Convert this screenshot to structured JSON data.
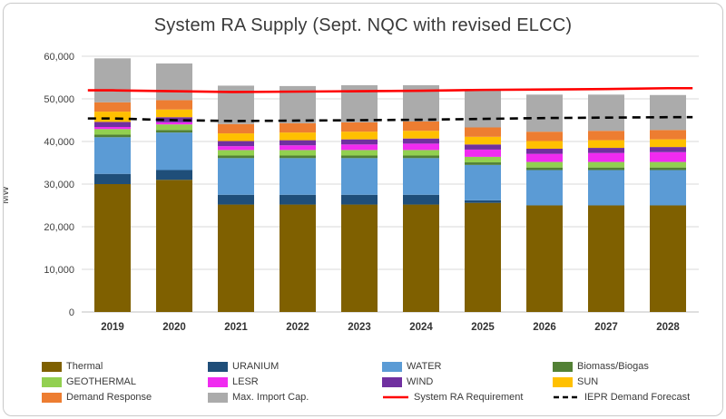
{
  "chart_data": {
    "type": "bar",
    "stacked": true,
    "title": "System RA Supply (Sept. NQC with revised ELCC)",
    "xlabel": "",
    "ylabel": "MW",
    "ylim": [
      0,
      60000
    ],
    "ytick_step": 10000,
    "grid": "horizontal",
    "legend_position": "bottom",
    "categories": [
      "2019",
      "2020",
      "2021",
      "2022",
      "2023",
      "2024",
      "2025",
      "2026",
      "2027",
      "2028"
    ],
    "series": [
      {
        "name": "Thermal",
        "color": "#7F6000",
        "values": [
          30000,
          31000,
          25200,
          25200,
          25200,
          25200,
          25600,
          25000,
          25000,
          25000
        ]
      },
      {
        "name": "URANIUM",
        "color": "#1F4E79",
        "values": [
          2400,
          2300,
          2300,
          2300,
          2300,
          2300,
          600,
          0,
          0,
          0
        ]
      },
      {
        "name": "WATER",
        "color": "#5B9BD5",
        "values": [
          8600,
          8800,
          8600,
          8600,
          8600,
          8600,
          8300,
          8300,
          8300,
          8300
        ]
      },
      {
        "name": "Biomass/Biogas",
        "color": "#538135",
        "values": [
          600,
          600,
          600,
          600,
          600,
          600,
          600,
          600,
          600,
          600
        ]
      },
      {
        "name": "GEOTHERMAL",
        "color": "#92D050",
        "values": [
          1300,
          1300,
          1300,
          1300,
          1300,
          1300,
          1300,
          1300,
          1300,
          1300
        ]
      },
      {
        "name": "LESR",
        "color": "#F02BF0",
        "values": [
          500,
          500,
          900,
          1100,
          1300,
          1500,
          1700,
          1900,
          2100,
          2300
        ]
      },
      {
        "name": "WIND",
        "color": "#7030A0",
        "values": [
          1200,
          1200,
          1200,
          1200,
          1200,
          1200,
          1200,
          1200,
          1200,
          1200
        ]
      },
      {
        "name": "SUN",
        "color": "#FFC000",
        "values": [
          2400,
          1800,
          1800,
          1800,
          1800,
          1800,
          1800,
          1800,
          1800,
          1800
        ]
      },
      {
        "name": "Demand Response",
        "color": "#ED7D31",
        "values": [
          2200,
          2200,
          2200,
          2200,
          2200,
          2200,
          2200,
          2200,
          2200,
          2200
        ]
      },
      {
        "name": "Max. Import Cap.",
        "color": "#ABABAB",
        "values": [
          10300,
          8600,
          9000,
          8700,
          8700,
          8500,
          8700,
          8700,
          8500,
          8200
        ]
      }
    ],
    "lines": [
      {
        "name": "System RA Requirement",
        "color": "#FF0000",
        "style": "solid",
        "values": [
          52000,
          51800,
          51600,
          51700,
          51800,
          51900,
          52100,
          52200,
          52300,
          52500
        ]
      },
      {
        "name": "IEPR Demand Forecast",
        "color": "#000000",
        "style": "dashed",
        "values": [
          45400,
          45000,
          44800,
          44900,
          45000,
          45100,
          45300,
          45500,
          45600,
          45700
        ]
      }
    ]
  }
}
